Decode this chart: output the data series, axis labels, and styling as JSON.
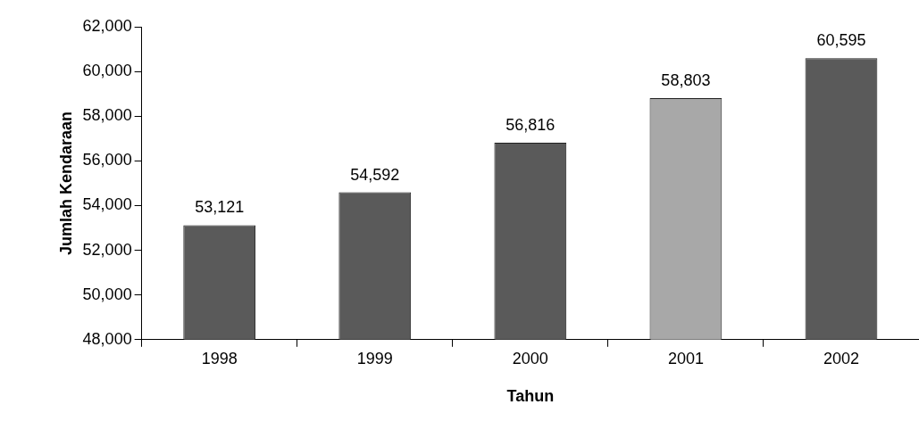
{
  "chart_data": {
    "type": "bar",
    "xlabel": "Tahun",
    "ylabel": "Jumlah Kendaraan",
    "categories": [
      "1998",
      "1999",
      "2000",
      "2001",
      "2002"
    ],
    "values": [
      53121,
      54592,
      56816,
      58803,
      60595
    ],
    "colors": [
      "#5a5a5a",
      "#5a5a5a",
      "#5a5a5a",
      "#a8a8a8",
      "#5a5a5a"
    ],
    "value_labels": [
      "53,121",
      "54,592",
      "56,816",
      "58,803",
      "60,595"
    ],
    "ylim": [
      48000,
      62000
    ],
    "yticks": [
      {
        "value": 48000,
        "label": "48,000"
      },
      {
        "value": 50000,
        "label": "50,000"
      },
      {
        "value": 52000,
        "label": "52,000"
      },
      {
        "value": 54000,
        "label": "54,000"
      },
      {
        "value": 56000,
        "label": "56,000"
      },
      {
        "value": 58000,
        "label": "58,000"
      },
      {
        "value": 60000,
        "label": "60,000"
      },
      {
        "value": 62000,
        "label": "62,000"
      }
    ],
    "grid": false,
    "legend": false
  }
}
